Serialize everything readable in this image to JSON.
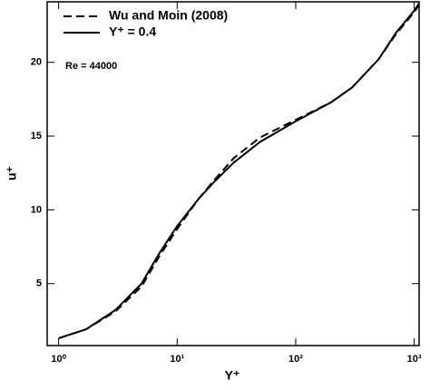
{
  "chart_data": {
    "type": "line",
    "x_label": "Y⁺",
    "y_label": "u⁺",
    "annotation": "Re = 44000",
    "log_x": true,
    "legend": "top-left",
    "xlim": [
      0.8,
      1100
    ],
    "ylim": [
      0.8,
      24.1
    ],
    "xticks": [
      {
        "value": 1,
        "label": "10⁰"
      },
      {
        "value": 10,
        "label": "10¹"
      },
      {
        "value": 100,
        "label": "10²"
      },
      {
        "value": 1000,
        "label": "10³"
      }
    ],
    "yticks": [
      5,
      10,
      15,
      20
    ],
    "series": [
      {
        "name": "Wu and Moin (2008)",
        "color": "#000000",
        "dash": true,
        "x": [
          1,
          1.7,
          3,
          5,
          7,
          10,
          15,
          20,
          30,
          50,
          100,
          200,
          300,
          500,
          700,
          1000,
          1100
        ],
        "values": [
          1.3,
          1.9,
          3.1,
          4.8,
          6.8,
          8.7,
          10.7,
          11.9,
          13.5,
          14.9,
          16.1,
          17.3,
          18.3,
          20.2,
          21.9,
          23.4,
          23.9
        ]
      },
      {
        "name": "Y⁺ = 0.4",
        "color": "#000000",
        "dash": false,
        "x": [
          1,
          1.7,
          3,
          5,
          7,
          10,
          15,
          20,
          30,
          50,
          100,
          200,
          300,
          500,
          700,
          1000,
          1100
        ],
        "values": [
          1.3,
          1.9,
          3.2,
          5.0,
          7.0,
          8.9,
          10.7,
          11.8,
          13.2,
          14.6,
          16.0,
          17.3,
          18.3,
          20.2,
          22.0,
          23.5,
          24.0
        ]
      }
    ]
  }
}
